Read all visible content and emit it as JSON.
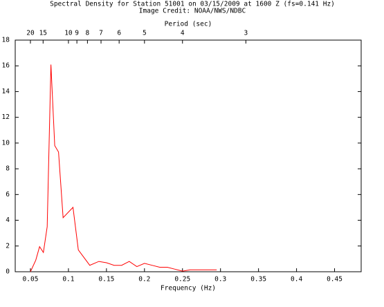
{
  "chart_data": {
    "type": "line",
    "title": "Spectral Density for Station 51001 on 03/15/2009 at 1600 Z (fs=0.141 Hz)",
    "subtitle": "Image Credit: NOAA/NWS/NDBC",
    "x_label": "Frequency (Hz)",
    "x2_label": "Period (sec)",
    "x": [
      0.05,
      0.057,
      0.062,
      0.067,
      0.072,
      0.077,
      0.082,
      0.087,
      0.093,
      0.106,
      0.113,
      0.128,
      0.14,
      0.15,
      0.16,
      0.17,
      0.18,
      0.19,
      0.2,
      0.21,
      0.22,
      0.23,
      0.24,
      0.25,
      0.26,
      0.27,
      0.28,
      0.295
    ],
    "series": [
      {
        "color": "#ff0000",
        "values": [
          0,
          0.9,
          1.95,
          1.5,
          3.5,
          16.1,
          9.8,
          9.3,
          4.2,
          5.0,
          1.7,
          0.5,
          0.8,
          0.7,
          0.5,
          0.5,
          0.8,
          0.4,
          0.65,
          0.5,
          0.35,
          0.35,
          0.2,
          0.05,
          0.15,
          0.15,
          0.15,
          0.15
        ]
      }
    ],
    "xlim": [
      0.03,
      0.485
    ],
    "xticks": [
      0.05,
      0.1,
      0.15,
      0.2,
      0.25,
      0.3,
      0.35,
      0.4,
      0.45
    ],
    "x2ticks": [
      20,
      15,
      10,
      9,
      8,
      7,
      6,
      5,
      4,
      3
    ],
    "x2_scale": "reciprocal",
    "ylim": [
      0,
      18
    ],
    "yticks": [
      0,
      2,
      4,
      6,
      8,
      10,
      12,
      14,
      16,
      18
    ],
    "grid": false
  }
}
